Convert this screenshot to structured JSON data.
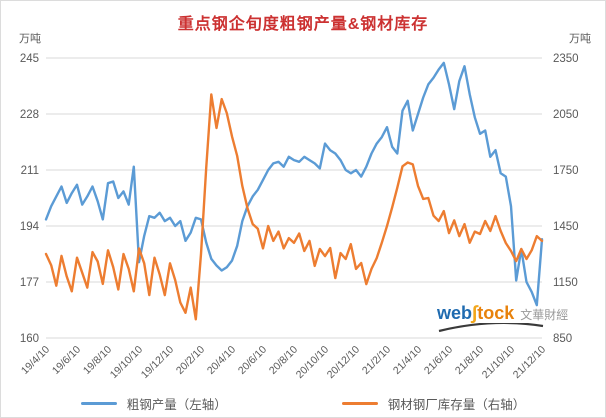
{
  "title": "重点钢企旬度粗钢产量&钢材库存",
  "colors": {
    "title": "#cc3232",
    "grid": "#d9d9d9",
    "axis_text": "#595959",
    "series_blue": "#5B9BD5",
    "series_orange": "#ED7D31"
  },
  "watermark": {
    "part_web": "web",
    "part_integral": "∫",
    "part_tock": "tock",
    "part_cn": "文華財經"
  },
  "chart_data": {
    "type": "line",
    "title": "重点钢企旬度粗钢产量&钢材库存",
    "x_label_note": "ten-day (旬) periods from 19/4/10 to 21/12/10",
    "x_tick_labels": [
      "19/4/10",
      "19/6/10",
      "19/8/10",
      "19/10/10",
      "19/12/10",
      "20/2/10",
      "20/4/10",
      "20/6/10",
      "20/8/10",
      "20/10/10",
      "20/12/10",
      "21/2/10",
      "21/4/10",
      "21/6/10",
      "21/8/10",
      "21/10/10",
      "21/12/10"
    ],
    "left_axis": {
      "unit": "万吨",
      "min": 160,
      "max": 245,
      "ticks": [
        245,
        228,
        211,
        194,
        177,
        160
      ]
    },
    "right_axis": {
      "unit": "万吨",
      "min": 850,
      "max": 2350,
      "ticks": [
        2350,
        2050,
        1750,
        1450,
        1150,
        850
      ]
    },
    "grid": true,
    "legend_position": "bottom",
    "series": [
      {
        "name": "粗钢产量（左轴）",
        "axis": "left",
        "color": "#5B9BD5",
        "values": [
          196,
          200,
          203,
          206,
          201,
          204,
          206.5,
          200.5,
          203,
          206,
          201.5,
          196,
          207,
          207.5,
          202.5,
          204.5,
          200.5,
          212,
          183,
          191,
          197,
          196.5,
          198,
          195.5,
          196.5,
          194,
          195.5,
          189.5,
          192,
          196.5,
          196,
          189,
          184,
          182,
          180.5,
          181.5,
          183.5,
          188,
          195.5,
          200,
          203,
          205,
          208,
          211,
          213,
          213.5,
          212,
          215,
          214,
          213.5,
          215,
          214,
          213,
          211.5,
          219,
          217,
          216,
          214,
          211,
          210,
          211,
          209,
          212,
          216,
          219,
          221,
          224,
          218,
          216,
          229,
          232,
          223,
          228,
          233,
          237,
          239,
          241.5,
          243.5,
          237,
          229.5,
          238,
          242.5,
          234,
          227,
          222,
          223,
          215,
          217,
          210,
          209,
          200,
          177.5,
          187,
          177,
          174,
          170,
          190
        ]
      },
      {
        "name": "钢材钢厂库存量（右轴）",
        "axis": "right",
        "color": "#ED7D31",
        "values": [
          1300,
          1240,
          1130,
          1290,
          1180,
          1100,
          1280,
          1200,
          1120,
          1310,
          1260,
          1140,
          1320,
          1230,
          1110,
          1300,
          1220,
          1100,
          1330,
          1250,
          1080,
          1280,
          1190,
          1080,
          1250,
          1160,
          1040,
          985,
          1120,
          950,
          1300,
          1760,
          2155,
          1975,
          2130,
          2055,
          1930,
          1825,
          1665,
          1545,
          1460,
          1435,
          1330,
          1450,
          1370,
          1420,
          1330,
          1385,
          1360,
          1410,
          1316,
          1370,
          1236,
          1327,
          1289,
          1332,
          1171,
          1305,
          1273,
          1353,
          1220,
          1252,
          1139,
          1220,
          1278,
          1360,
          1450,
          1550,
          1655,
          1770,
          1790,
          1780,
          1665,
          1595,
          1600,
          1505,
          1477,
          1530,
          1412,
          1480,
          1396,
          1460,
          1360,
          1420,
          1407,
          1477,
          1423,
          1503,
          1423,
          1359,
          1316,
          1262,
          1327,
          1273,
          1320,
          1396,
          1370
        ]
      }
    ]
  }
}
